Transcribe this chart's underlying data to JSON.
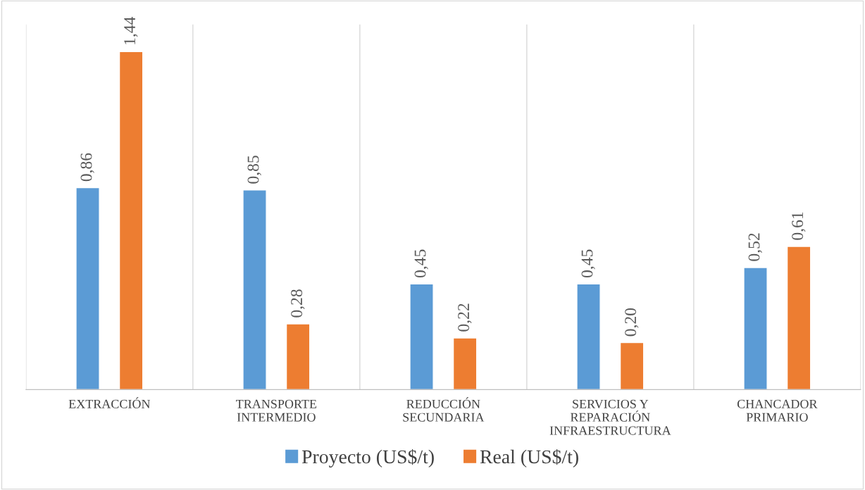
{
  "chart_data": {
    "type": "bar",
    "categories": [
      "EXTRACCIÓN",
      "TRANSPORTE\nINTERMEDIO",
      "REDUCCIÓN\nSECUNDARIA",
      "SERVICIOS Y\nREPARACIÓN\nINFRAESTRUCTURA",
      "CHANCADOR\nPRIMARIO"
    ],
    "series": [
      {
        "name": "Proyecto (US$/t)",
        "color": "#5b9bd5",
        "values": [
          0.86,
          0.85,
          0.45,
          0.45,
          0.52
        ],
        "value_labels": [
          "0,86",
          "0,85",
          "0,45",
          "0,45",
          "0,52"
        ]
      },
      {
        "name": "Real (US$/t)",
        "color": "#ed7d31",
        "values": [
          1.44,
          0.28,
          0.22,
          0.2,
          0.61
        ],
        "value_labels": [
          "1,44",
          "0,28",
          "0,22",
          "0,20",
          "0,61"
        ]
      }
    ],
    "grid": "x",
    "legend": "bottom",
    "tick_labels": "x"
  }
}
